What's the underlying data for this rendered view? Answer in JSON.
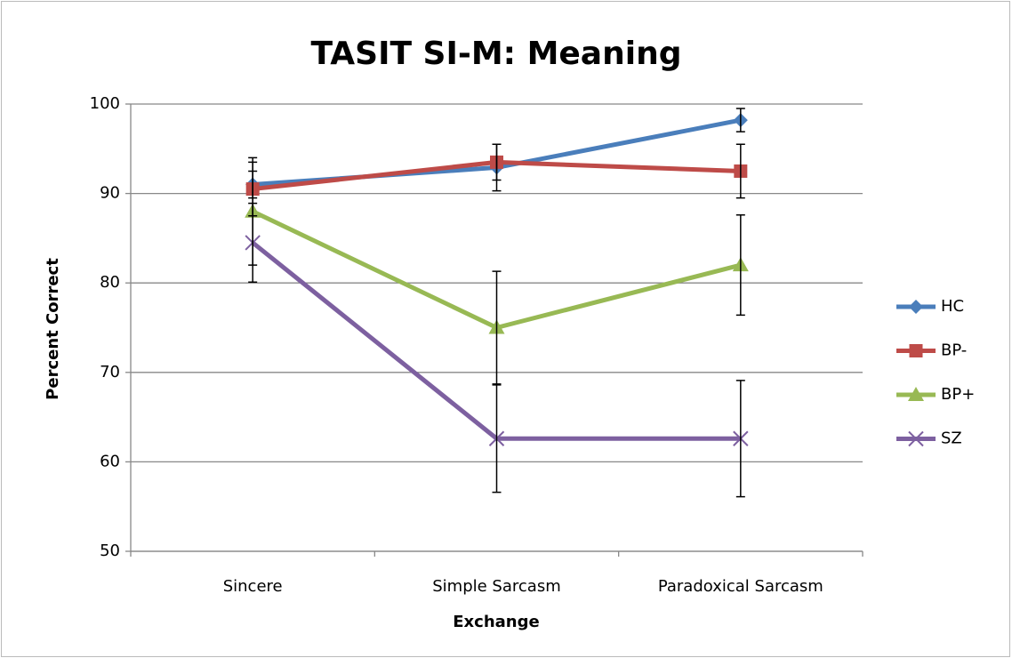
{
  "chart_data": {
    "type": "line",
    "title": "TASIT SI-M: Meaning",
    "x_label": "Exchange",
    "y_label": "Percent Correct",
    "categories": [
      "Sincere",
      "Simple Sarcasm",
      "Paradoxical Sarcasm"
    ],
    "ylim": [
      50,
      100
    ],
    "yticks": [
      50,
      60,
      70,
      80,
      90,
      100
    ],
    "grid": true,
    "legend": "right",
    "series": [
      {
        "name": "HC",
        "color": "#4a7ebb",
        "marker": "diamond",
        "values": [
          91.0,
          92.9,
          98.2
        ],
        "errors": [
          1.5,
          2.6,
          1.3
        ]
      },
      {
        "name": "BP-",
        "color": "#be4b48",
        "marker": "square",
        "values": [
          90.5,
          93.5,
          92.5
        ],
        "errors": [
          3.0,
          2.0,
          3.0
        ]
      },
      {
        "name": "BP+",
        "color": "#98b954",
        "marker": "triangle",
        "values": [
          88.0,
          75.0,
          82.0
        ],
        "errors": [
          6.0,
          6.3,
          5.6
        ]
      },
      {
        "name": "SZ",
        "color": "#7d60a0",
        "marker": "x",
        "values": [
          84.5,
          62.6,
          62.6
        ],
        "errors": [
          4.4,
          6.0,
          6.5
        ]
      }
    ]
  }
}
